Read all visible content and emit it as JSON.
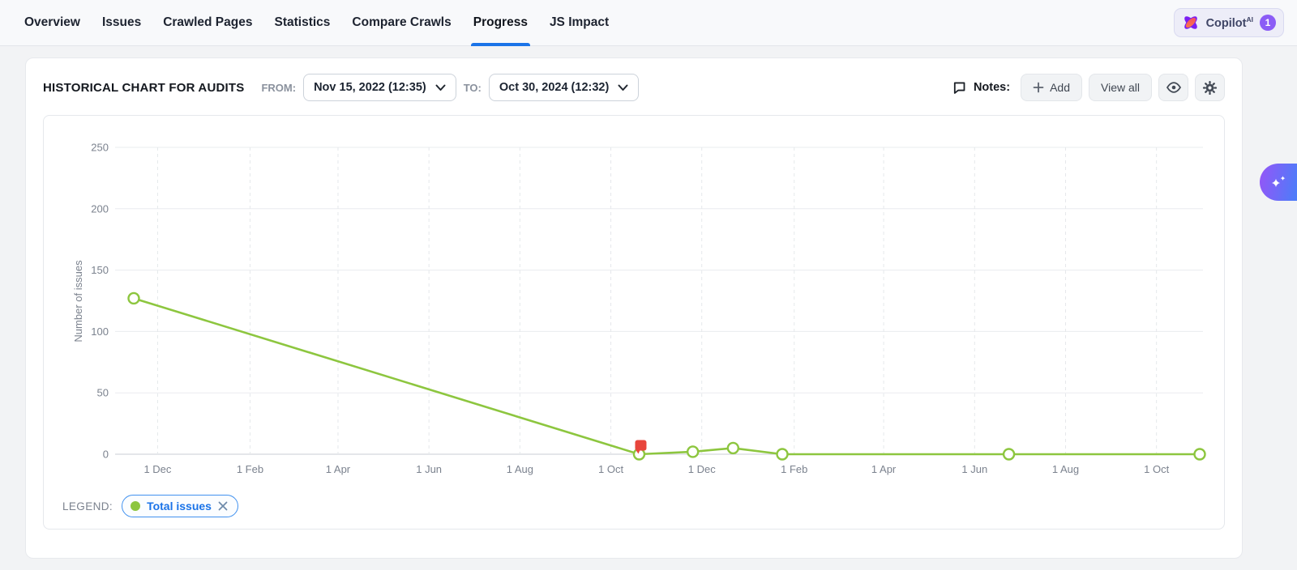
{
  "topnav": {
    "tabs": [
      {
        "label": "Overview",
        "active": false
      },
      {
        "label": "Issues",
        "active": false
      },
      {
        "label": "Crawled Pages",
        "active": false
      },
      {
        "label": "Statistics",
        "active": false
      },
      {
        "label": "Compare Crawls",
        "active": false
      },
      {
        "label": "Progress",
        "active": true
      },
      {
        "label": "JS Impact",
        "active": false
      }
    ],
    "copilot": {
      "label": "Copilot",
      "superscript": "AI",
      "badge": "1"
    }
  },
  "header": {
    "title": "HISTORICAL CHART FOR AUDITS",
    "from_label": "FROM:",
    "from_value": "Nov 15, 2022 (12:35)",
    "to_label": "TO:",
    "to_value": "Oct 30, 2024 (12:32)",
    "notes_label": "Notes:",
    "add_label": "Add",
    "view_all_label": "View all"
  },
  "icons": [
    "comment-icon",
    "plus-icon",
    "eye-icon",
    "gear-icon",
    "chevron-down-icon",
    "close-icon",
    "copilot-logo-icon",
    "sparkles-icon"
  ],
  "colors": {
    "accent_blue": "#1a73e8",
    "series_green": "#8dc63f",
    "note_red": "#e8453c",
    "badge_purple": "#8b5cf6"
  },
  "chart_data": {
    "type": "line",
    "title": "HISTORICAL CHART FOR AUDITS",
    "xlabel": "",
    "ylabel": "Number of issues",
    "ylim": [
      0,
      250
    ],
    "yticks": [
      0,
      50,
      100,
      150,
      200,
      250
    ],
    "x_range": [
      "2022-11-15",
      "2024-10-30"
    ],
    "xticks": [
      {
        "date": "2022-12-01",
        "label": "1 Dec"
      },
      {
        "date": "2023-02-01",
        "label": "1 Feb"
      },
      {
        "date": "2023-04-01",
        "label": "1 Apr"
      },
      {
        "date": "2023-06-01",
        "label": "1 Jun"
      },
      {
        "date": "2023-08-01",
        "label": "1 Aug"
      },
      {
        "date": "2023-10-01",
        "label": "1 Oct"
      },
      {
        "date": "2023-12-01",
        "label": "1 Dec"
      },
      {
        "date": "2024-02-01",
        "label": "1 Feb"
      },
      {
        "date": "2024-04-01",
        "label": "1 Apr"
      },
      {
        "date": "2024-06-01",
        "label": "1 Jun"
      },
      {
        "date": "2024-08-01",
        "label": "1 Aug"
      },
      {
        "date": "2024-10-01",
        "label": "1 Oct"
      }
    ],
    "series": [
      {
        "name": "Total issues",
        "color": "#8dc63f",
        "points": [
          {
            "date": "2022-11-15",
            "value": 127
          },
          {
            "date": "2023-10-20",
            "value": 0
          },
          {
            "date": "2023-11-25",
            "value": 2
          },
          {
            "date": "2023-12-22",
            "value": 5
          },
          {
            "date": "2024-01-24",
            "value": 0
          },
          {
            "date": "2024-06-24",
            "value": 0
          },
          {
            "date": "2024-10-30",
            "value": 0
          }
        ]
      }
    ],
    "note_markers": [
      {
        "date": "2023-10-20",
        "value": 0,
        "color": "#e8453c"
      }
    ],
    "grid": {
      "horizontal": "solid",
      "vertical": "dashed"
    },
    "legend_position": "bottom-left"
  },
  "legend": {
    "label": "LEGEND:",
    "items": [
      {
        "name": "Total issues",
        "color": "#8dc63f",
        "removable": true
      }
    ]
  }
}
